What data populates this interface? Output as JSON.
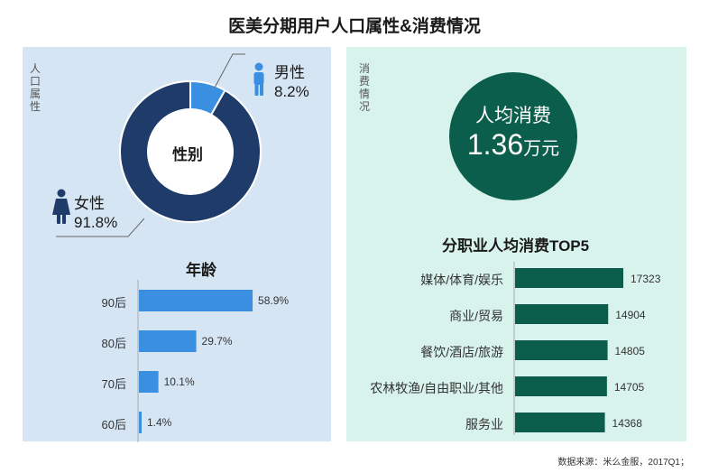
{
  "title": "医美分期用户人口属性&消费情况",
  "left_panel": {
    "vertical_label": "人口属性",
    "gender": {
      "center_label": "性别",
      "male": {
        "label": "男性",
        "percent": "8.2%",
        "value": 8.2
      },
      "female": {
        "label": "女性",
        "percent": "91.8%",
        "value": 91.8
      }
    },
    "age_title": "年龄"
  },
  "right_panel": {
    "vertical_label": "消费情况",
    "avg": {
      "label": "人均消费",
      "value": "1.36",
      "unit": "万元"
    },
    "jobs_title": "分职业人均消费TOP5"
  },
  "source": "数据来源：米么金服，2017Q1；",
  "colors": {
    "male": "#3a8fe0",
    "female": "#1e3b6a",
    "age_bar": "#3a8fe0",
    "job_bar": "#0b5e4b",
    "left_bg": "#d6e5f4",
    "right_bg": "#d8f2ec"
  },
  "chart_data": [
    {
      "type": "pie",
      "title": "性别",
      "categories": [
        "男性",
        "女性"
      ],
      "values": [
        8.2,
        91.8
      ]
    },
    {
      "type": "bar",
      "orientation": "horizontal",
      "title": "年龄",
      "categories": [
        "90后",
        "80后",
        "70后",
        "60后"
      ],
      "values": [
        58.9,
        29.7,
        10.1,
        1.4
      ],
      "labels": [
        "58.9%",
        "29.7%",
        "10.1%",
        "1.4%"
      ],
      "xlim": [
        0,
        100
      ]
    },
    {
      "type": "bar",
      "orientation": "horizontal",
      "title": "分职业人均消费TOP5",
      "categories": [
        "媒体/体育/娱乐",
        "商业/贸易",
        "餐饮/酒店/旅游",
        "农林牧渔/自由职业/其他",
        "服务业"
      ],
      "values": [
        17323,
        14904,
        14805,
        14705,
        14368
      ],
      "xlim": [
        0,
        17323
      ]
    }
  ]
}
